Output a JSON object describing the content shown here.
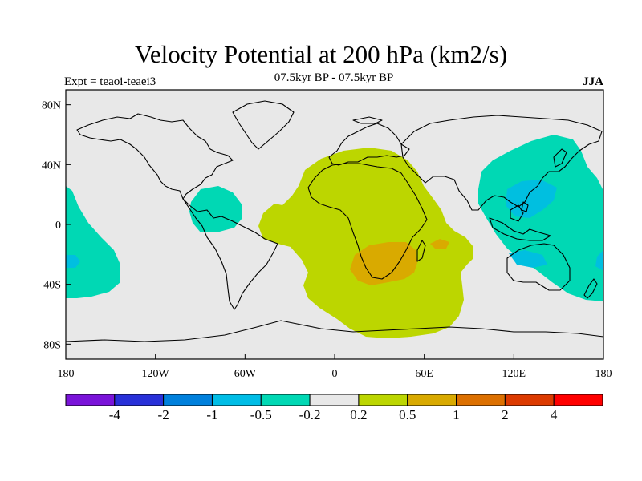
{
  "title": "Velocity Potential at 200 hPa (km2/s)",
  "subtitle": "07.5kyr BP - 07.5kyr BP",
  "expt_label": "Expt = teaoi-teaei3",
  "season": "JJA",
  "colors": {
    "land_background": "#e8e8e8",
    "coast": "#000000",
    "pos_0_2": "#bcd600",
    "pos_0_5": "#d9aa00",
    "neg_0_2": "#00d8b4",
    "neg_0_5": "#00bfe0"
  },
  "axes": {
    "lon_ticks": [
      "180",
      "120W",
      "60W",
      "0",
      "60E",
      "120E",
      "180"
    ],
    "lat_ticks": [
      "80N",
      "40N",
      "0",
      "40S",
      "80S"
    ]
  },
  "colorbar": {
    "colors": [
      "#7a14d9",
      "#2830d8",
      "#0080dc",
      "#00bde6",
      "#00d8b4",
      "#e8e8e8",
      "#bcd600",
      "#d9aa00",
      "#dc7000",
      "#dc3a00",
      "#ff0000"
    ],
    "labels": [
      "-4",
      "-2",
      "-1",
      "-0.5",
      "-0.2",
      "0.2",
      "0.5",
      "1",
      "2",
      "4"
    ]
  }
}
